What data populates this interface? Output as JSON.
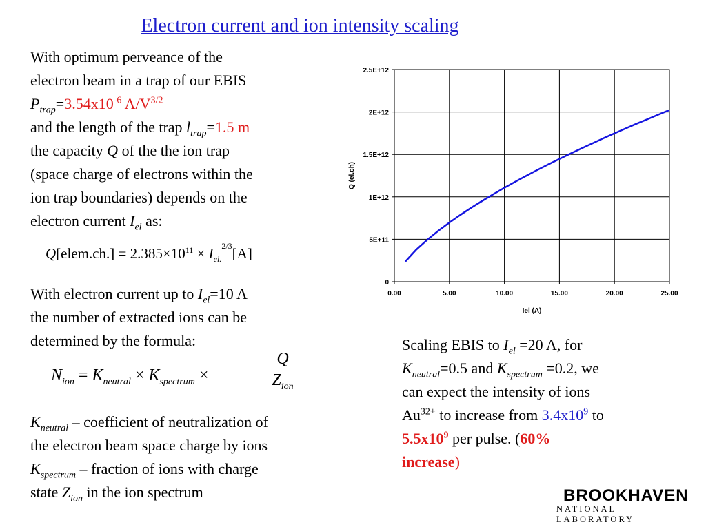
{
  "title": "Electron current and ion intensity scaling",
  "left_top": {
    "line1": "With optimum perveance of the",
    "line2": "electron beam in a trap of our EBIS",
    "p_symbol": "P",
    "p_sub": "trap",
    "eq": "=",
    "p_value": "3.54x10",
    "p_exp": "-6",
    "p_unit": " A/V",
    "p_unit_exp": "3/2",
    "line4a": "and the length of the trap ",
    "l_symbol": "l",
    "l_sub": "trap",
    "l_eq": "=",
    "l_value": "1.5 m",
    "line5a": "the capacity ",
    "q_symbol": "Q",
    "line5b": " of the the ion trap",
    "line6": "(space charge of electrons within the",
    "line7": "ion trap boundaries) depends on the",
    "line8a": "electron current ",
    "i_symbol": "I",
    "i_sub": "el",
    "line8b": "  as:"
  },
  "formula1": {
    "q": "Q",
    "bracket": "[elem.ch.] = 2.385×10",
    "exp11": "11",
    "times": " × ",
    "i": "I",
    "i_sub": "el.",
    "exp": "2/3",
    "unit": "[A]"
  },
  "left_mid": {
    "line1a": "With electron current up to ",
    "i_symbol": "I",
    "i_sub": "el",
    "line1b": "=10 A",
    "line2": "the  number of extracted ions can be",
    "line3": "determined by the formula:"
  },
  "formula2": {
    "n": "N",
    "n_sub": "ion",
    "eq": " = ",
    "k1": "K",
    "k1_sub": "neutral",
    "times1": " × ",
    "k2": "K",
    "k2_sub": "spectrum",
    "times2": " ×",
    "num": "Q",
    "den": "Z",
    "den_sub": "ion"
  },
  "left_bottom": {
    "k1": "K",
    "k1_sub": "neutral",
    "k1_text": " – coefficient of neutralization of",
    "line2": "the electron beam space charge by ions",
    "k2": "K",
    "k2_sub": "spectrum",
    "k2_text": " – fraction of ions with charge",
    "line4a": "state ",
    "z": "Z",
    "z_sub": "ion",
    "line4b": " in the ion spectrum"
  },
  "right_text": {
    "l1a": "Scaling EBIS to ",
    "i_symbol": "I",
    "i_sub": "el",
    "l1b": " =20 A,  for",
    "k1": "K",
    "k1_sub": "neutral",
    "l2a": "=0.5 and ",
    "k2": "K",
    "k2_sub": "spectrum",
    "l2b": " =0.2, we",
    "l3": "can expect the intensity of ions",
    "l4a": "Au",
    "au_exp": "32+",
    "l4b": " to increase from ",
    "from_val": "3.4x10",
    "from_exp": "9",
    "l4c": " to",
    "to_val": "5.5x10",
    "to_exp": "9",
    "l5b": " per pulse. (",
    "pct": "60%",
    "l6": "increase",
    "close": ")"
  },
  "logo": {
    "top": "BROOKHAVEN",
    "bottom": "NATIONAL LABORATORY"
  },
  "colors": {
    "title": "#1f1fcc",
    "highlight_red": "#e01b1b",
    "highlight_blue": "#1f1fcc",
    "series": "#1515e0"
  },
  "chart_data": {
    "type": "line",
    "xlabel": "Iel (A)",
    "ylabel": "Q (el.ch)",
    "xlim": [
      0,
      25
    ],
    "ylim": [
      0,
      2500000000000
    ],
    "x_ticks": [
      "0.00",
      "5.00",
      "10.00",
      "15.00",
      "20.00",
      "25.00"
    ],
    "y_ticks": [
      "0",
      "5E+11",
      "1E+12",
      "1.5E+12",
      "2E+12",
      "2.5E+12"
    ],
    "grid": true,
    "series": [
      {
        "x": [
          1,
          2,
          3,
          4,
          5,
          6,
          7,
          8,
          9,
          10,
          11,
          12,
          13,
          14,
          15,
          16,
          17,
          18,
          19,
          20,
          21,
          22,
          23,
          24,
          25
        ],
        "y": [
          238500000000.0,
          379000000000.0,
          496000000000.0,
          601000000000.0,
          697000000000.0,
          788000000000.0,
          873000000000.0,
          954000000000.0,
          1032000000000.0,
          1107000000000.0,
          1179000000000.0,
          1249000000000.0,
          1317000000000.0,
          1383000000000.0,
          1447000000000.0,
          1510000000000.0,
          1571000000000.0,
          1631000000000.0,
          1690000000000.0,
          1748000000000.0,
          1805000000000.0,
          1861000000000.0,
          1915000000000.0,
          1969000000000.0,
          2023000000000.0
        ]
      }
    ]
  }
}
